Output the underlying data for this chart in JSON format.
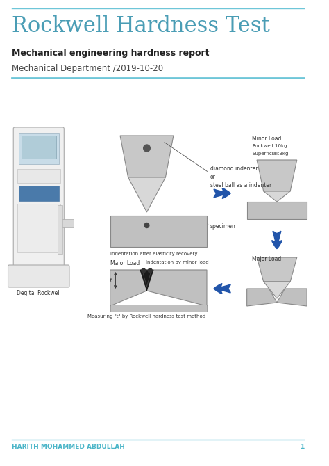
{
  "title": "Rockwell Hardness Test",
  "subtitle": "Mechanical engineering hardness report",
  "dept_date": "Mechanical Department /2019-10-20",
  "footer_name": "HARITH MOHAMMED ABDULLAH",
  "footer_page": "1",
  "title_color": "#4a9db5",
  "subtitle_color": "#222222",
  "dept_color": "#444444",
  "footer_color": "#4ab5c8",
  "line_color": "#6ec6d8",
  "bg_color": "#ffffff",
  "title_fontsize": 22,
  "subtitle_fontsize": 9,
  "dept_fontsize": 8.5,
  "footer_fontsize": 6.5,
  "diagram_label_fontsize": 5.5,
  "diagram_label_small_fontsize": 5.0
}
